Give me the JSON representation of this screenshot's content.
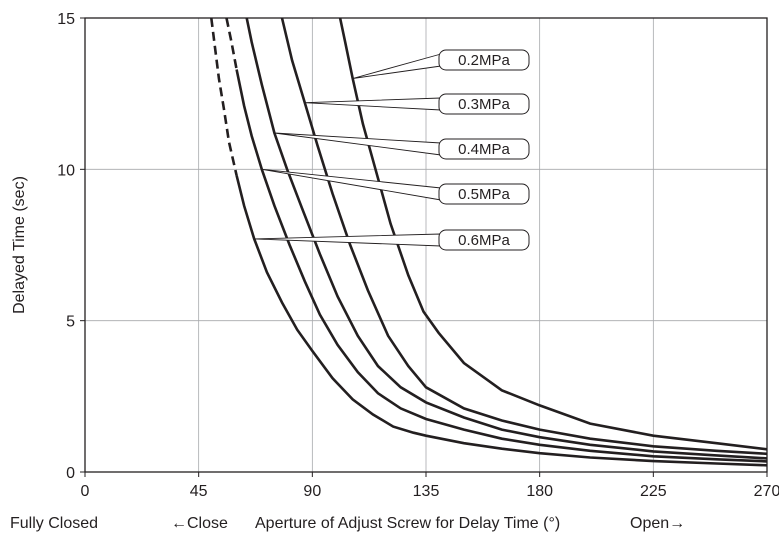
{
  "chart_data": {
    "type": "line",
    "title": "",
    "xlabel": "Aperture of Adjust Screw for Delay Time (°)",
    "ylabel": "Delayed Time (sec)",
    "x_annotations": {
      "left": "Fully Closed",
      "close": "←Close",
      "open": "Open→"
    },
    "xlim": [
      0,
      270
    ],
    "ylim": [
      0,
      15
    ],
    "xticks": [
      0,
      45,
      90,
      135,
      180,
      225,
      270
    ],
    "yticks": [
      0,
      5,
      10,
      15
    ],
    "grid": true,
    "legend": "callout labels on curves",
    "series": [
      {
        "name": "0.2MPa",
        "points": [
          [
            101,
            15
          ],
          [
            103,
            14.2
          ],
          [
            106,
            13
          ],
          [
            110,
            11.5
          ],
          [
            115,
            10
          ],
          [
            121,
            8.2
          ],
          [
            128,
            6.5
          ],
          [
            134,
            5.3
          ],
          [
            140,
            4.6
          ],
          [
            150,
            3.6
          ],
          [
            165,
            2.7
          ],
          [
            180,
            2.2
          ],
          [
            200,
            1.6
          ],
          [
            225,
            1.2
          ],
          [
            250,
            0.95
          ],
          [
            270,
            0.75
          ]
        ],
        "dashed_until_x": null
      },
      {
        "name": "0.3MPa",
        "points": [
          [
            78,
            15
          ],
          [
            82,
            13.6
          ],
          [
            87,
            12.2
          ],
          [
            92,
            10.8
          ],
          [
            98,
            9.2
          ],
          [
            105,
            7.5
          ],
          [
            112,
            6
          ],
          [
            120,
            4.5
          ],
          [
            128,
            3.5
          ],
          [
            135,
            2.8
          ],
          [
            150,
            2.1
          ],
          [
            165,
            1.7
          ],
          [
            180,
            1.4
          ],
          [
            200,
            1.1
          ],
          [
            225,
            0.85
          ],
          [
            250,
            0.7
          ],
          [
            270,
            0.6
          ]
        ],
        "dashed_until_x": null
      },
      {
        "name": "0.4MPa",
        "points": [
          [
            64,
            15
          ],
          [
            66,
            14.2
          ],
          [
            70,
            12.8
          ],
          [
            75,
            11.2
          ],
          [
            80,
            10
          ],
          [
            86,
            8.7
          ],
          [
            93,
            7.2
          ],
          [
            100,
            5.8
          ],
          [
            108,
            4.5
          ],
          [
            116,
            3.5
          ],
          [
            125,
            2.8
          ],
          [
            135,
            2.3
          ],
          [
            150,
            1.8
          ],
          [
            165,
            1.4
          ],
          [
            180,
            1.15
          ],
          [
            200,
            0.9
          ],
          [
            225,
            0.68
          ],
          [
            250,
            0.55
          ],
          [
            270,
            0.45
          ]
        ],
        "dashed_until_x": null
      },
      {
        "name": "0.5MPa",
        "points": [
          [
            56,
            15
          ],
          [
            58,
            14.2
          ],
          [
            60,
            13.3
          ],
          [
            63,
            12.1
          ],
          [
            66,
            11.1
          ],
          [
            70,
            10
          ],
          [
            75,
            8.8
          ],
          [
            81,
            7.5
          ],
          [
            87,
            6.3
          ],
          [
            93,
            5.2
          ],
          [
            100,
            4.2
          ],
          [
            108,
            3.3
          ],
          [
            116,
            2.6
          ],
          [
            125,
            2.1
          ],
          [
            135,
            1.75
          ],
          [
            150,
            1.4
          ],
          [
            165,
            1.1
          ],
          [
            180,
            0.9
          ],
          [
            200,
            0.7
          ],
          [
            225,
            0.52
          ],
          [
            250,
            0.42
          ],
          [
            270,
            0.35
          ]
        ],
        "dashed_until_x": 60
      },
      {
        "name": "0.6MPa",
        "points": [
          [
            50,
            15
          ],
          [
            51.5,
            14
          ],
          [
            53,
            13
          ],
          [
            55,
            12
          ],
          [
            57,
            10.9
          ],
          [
            60,
            9.8
          ],
          [
            63,
            8.8
          ],
          [
            67,
            7.7
          ],
          [
            72,
            6.6
          ],
          [
            78,
            5.6
          ],
          [
            84,
            4.7
          ],
          [
            90,
            4
          ],
          [
            98,
            3.1
          ],
          [
            106,
            2.4
          ],
          [
            114,
            1.9
          ],
          [
            122,
            1.5
          ],
          [
            130,
            1.3
          ],
          [
            135,
            1.2
          ],
          [
            150,
            0.95
          ],
          [
            165,
            0.77
          ],
          [
            180,
            0.62
          ],
          [
            200,
            0.48
          ],
          [
            225,
            0.36
          ],
          [
            250,
            0.28
          ],
          [
            270,
            0.22
          ]
        ],
        "dashed_until_x": 60
      }
    ]
  }
}
